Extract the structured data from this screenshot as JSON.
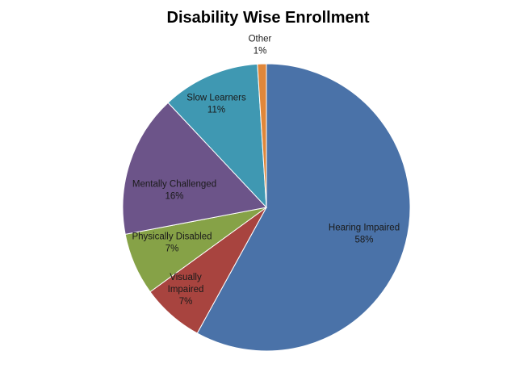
{
  "chart_data": {
    "type": "pie",
    "title": "Disability Wise Enrollment",
    "series": [
      {
        "name": "Hearing Impaired",
        "value": 58,
        "label_lines": [
          "Hearing Impaired",
          "58%"
        ],
        "color": "#4A72A8"
      },
      {
        "name": "Visually Impaired",
        "value": 7,
        "label_lines": [
          "Visually",
          "Impaired",
          "7%"
        ],
        "color": "#A8443F"
      },
      {
        "name": "Physically Disabled",
        "value": 7,
        "label_lines": [
          "Physically Disabled",
          "7%"
        ],
        "color": "#86A247"
      },
      {
        "name": "Mentally Challenged",
        "value": 16,
        "label_lines": [
          "Mentally Challenged",
          "16%"
        ],
        "color": "#6C5489"
      },
      {
        "name": "Slow Learners",
        "value": 11,
        "label_lines": [
          "Slow Learners",
          "11%"
        ],
        "color": "#3F98B2"
      },
      {
        "name": "Other",
        "value": 1,
        "label_lines": [
          "Other",
          "1%"
        ],
        "color": "#E0873A"
      }
    ],
    "xlabel": "",
    "ylabel": "",
    "legend": "none"
  }
}
